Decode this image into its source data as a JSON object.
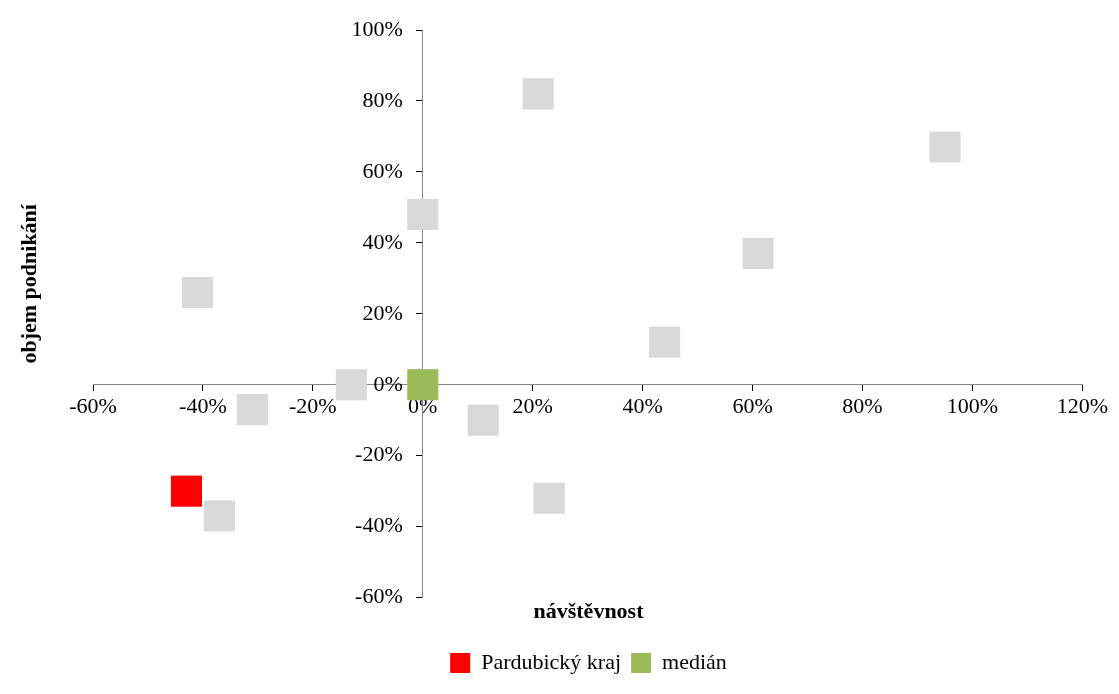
{
  "chart_data": {
    "type": "scatter",
    "xlabel": "návštěvnost",
    "ylabel": "objem podnikání",
    "marker": "square",
    "legend": "bottom",
    "grid": false,
    "xlim": [
      -60,
      120
    ],
    "ylim": [
      -60,
      100
    ],
    "xticks": [
      {
        "value": -60,
        "label": "-60%"
      },
      {
        "value": -40,
        "label": "-40%"
      },
      {
        "value": -20,
        "label": "-20%"
      },
      {
        "value": 0,
        "label": "0%"
      },
      {
        "value": 20,
        "label": "20%"
      },
      {
        "value": 40,
        "label": "40%"
      },
      {
        "value": 60,
        "label": "60%"
      },
      {
        "value": 80,
        "label": "80%"
      },
      {
        "value": 100,
        "label": "100%"
      },
      {
        "value": 120,
        "label": "120%"
      }
    ],
    "yticks": [
      {
        "value": -60,
        "label": "-60%"
      },
      {
        "value": -40,
        "label": "-40%"
      },
      {
        "value": -20,
        "label": "-20%"
      },
      {
        "value": 0,
        "label": "0%"
      },
      {
        "value": 20,
        "label": "20%"
      },
      {
        "value": 40,
        "label": "40%"
      },
      {
        "value": 60,
        "label": "60%"
      },
      {
        "value": 80,
        "label": "80%"
      },
      {
        "value": 100,
        "label": "100%"
      }
    ],
    "series": [
      {
        "name": "Pardubický kraj",
        "color": "#ff0000",
        "x": [
          -43
        ],
        "values": [
          -30
        ]
      },
      {
        "name": "medián",
        "color": "#9bbb59",
        "x": [
          0
        ],
        "values": [
          0
        ]
      },
      {
        "color": "#d9d9d9",
        "x": [
          -41,
          -31,
          -13,
          0,
          21,
          95,
          61,
          44,
          11,
          23,
          -37
        ],
        "values": [
          26,
          -7,
          0,
          48,
          82,
          67,
          37,
          12,
          -10,
          -32,
          -37
        ]
      }
    ]
  }
}
